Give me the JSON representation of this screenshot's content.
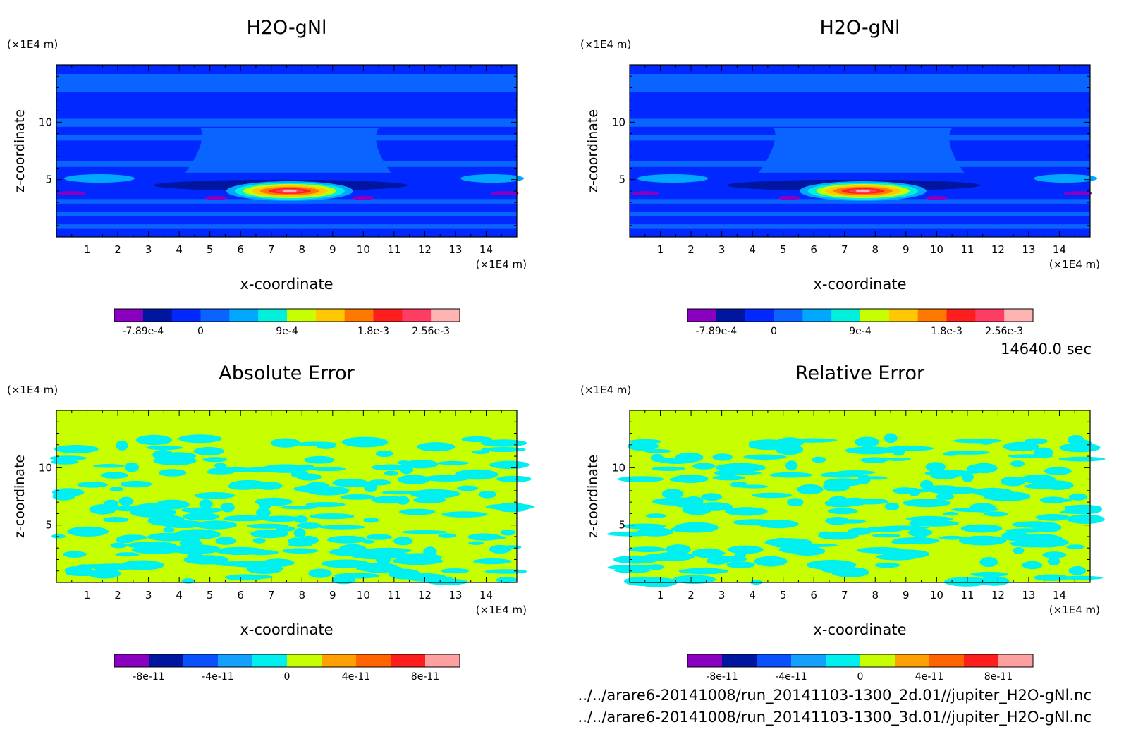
{
  "chart_data": [
    {
      "type": "heatmap",
      "title": "H2O-gNl",
      "xlabel": "x-coordinate",
      "ylabel": "z-coordinate",
      "x_unit": "(×1E4 m)",
      "z_unit": "(×1E4 m)",
      "xlim": [
        0,
        15
      ],
      "ylim": [
        0,
        15
      ],
      "x_ticks": [
        "1",
        "2",
        "3",
        "4",
        "5",
        "6",
        "7",
        "8",
        "9",
        "10",
        "11",
        "12",
        "13",
        "14"
      ],
      "z_ticks": [
        "5",
        "10"
      ],
      "colorbar": {
        "labels": [
          "-7.89e-4",
          "0",
          "9e-4",
          "1.8e-3",
          "2.56e-3"
        ],
        "colors": [
          "#8a00c0",
          "#0015a0",
          "#0028ff",
          "#0a64ff",
          "#00a8ff",
          "#00f0dc",
          "#c8ff00",
          "#ffc800",
          "#ff7800",
          "#ff1e1e",
          "#ff3c64",
          "#ffb4b4"
        ]
      },
      "peak": {
        "x": 7.6,
        "z": 4.0,
        "value": 0.00256
      }
    },
    {
      "type": "heatmap",
      "title": "H2O-gNl",
      "xlabel": "x-coordinate",
      "ylabel": "z-coordinate",
      "x_unit": "(×1E4 m)",
      "z_unit": "(×1E4 m)",
      "xlim": [
        0,
        15
      ],
      "ylim": [
        0,
        15
      ],
      "x_ticks": [
        "1",
        "2",
        "3",
        "4",
        "5",
        "6",
        "7",
        "8",
        "9",
        "10",
        "11",
        "12",
        "13",
        "14"
      ],
      "z_ticks": [
        "5",
        "10"
      ],
      "colorbar": {
        "labels": [
          "-7.89e-4",
          "0",
          "9e-4",
          "1.8e-3",
          "2.56e-3"
        ],
        "colors": [
          "#8a00c0",
          "#0015a0",
          "#0028ff",
          "#0a64ff",
          "#00a8ff",
          "#00f0dc",
          "#c8ff00",
          "#ffc800",
          "#ff7800",
          "#ff1e1e",
          "#ff3c64",
          "#ffb4b4"
        ]
      },
      "peak": {
        "x": 7.6,
        "z": 4.0,
        "value": 0.00256
      }
    },
    {
      "type": "heatmap",
      "title": "Absolute Error",
      "xlabel": "x-coordinate",
      "ylabel": "z-coordinate",
      "x_unit": "(×1E4 m)",
      "z_unit": "(×1E4 m)",
      "xlim": [
        0,
        15
      ],
      "ylim": [
        0,
        15
      ],
      "x_ticks": [
        "1",
        "2",
        "3",
        "4",
        "5",
        "6",
        "7",
        "8",
        "9",
        "10",
        "11",
        "12",
        "13",
        "14"
      ],
      "z_ticks": [
        "5",
        "10"
      ],
      "colorbar": {
        "labels": [
          "-8e-11",
          "-4e-11",
          "0",
          "4e-11",
          "8e-11"
        ],
        "colors": [
          "#8a00c0",
          "#0015a0",
          "#0a50ff",
          "#14a0ff",
          "#00f0f0",
          "#c8ff00",
          "#ffa000",
          "#ff6400",
          "#ff1e1e",
          "#ffa0a0"
        ]
      }
    },
    {
      "type": "heatmap",
      "title": "Relative Error",
      "xlabel": "x-coordinate",
      "ylabel": "z-coordinate",
      "x_unit": "(×1E4 m)",
      "z_unit": "(×1E4 m)",
      "xlim": [
        0,
        15
      ],
      "ylim": [
        0,
        15
      ],
      "x_ticks": [
        "1",
        "2",
        "3",
        "4",
        "5",
        "6",
        "7",
        "8",
        "9",
        "10",
        "11",
        "12",
        "13",
        "14"
      ],
      "z_ticks": [
        "5",
        "10"
      ],
      "colorbar": {
        "labels": [
          "-8e-11",
          "-4e-11",
          "0",
          "4e-11",
          "8e-11"
        ],
        "colors": [
          "#8a00c0",
          "#0015a0",
          "#0a50ff",
          "#14a0ff",
          "#00f0f0",
          "#c8ff00",
          "#ffa000",
          "#ff6400",
          "#ff1e1e",
          "#ffa0a0"
        ]
      }
    }
  ],
  "time_label": "14640.0 sec",
  "files": [
    "../../arare6-20141008/run_20141103-1300_2d.01//jupiter_H2O-gNl.nc",
    "../../arare6-20141008/run_20141103-1300_3d.01//jupiter_H2O-gNl.nc"
  ]
}
